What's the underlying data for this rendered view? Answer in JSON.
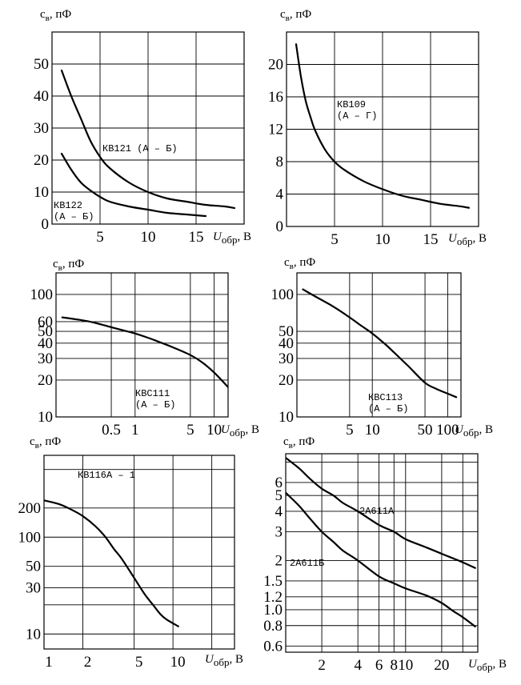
{
  "chart_data": [
    {
      "type": "line",
      "ylabel": "cв, пФ",
      "xlabel": "Uобр, В",
      "xlim": [
        0,
        20
      ],
      "ylim": [
        0,
        60
      ],
      "xticks": [
        5,
        10,
        15
      ],
      "xtick_labels": [
        "5",
        "10",
        "15"
      ],
      "yticks": [
        0,
        10,
        20,
        30,
        40,
        50
      ],
      "ytick_labels": [
        "0",
        "10",
        "20",
        "30",
        "40",
        "50"
      ],
      "grid": true,
      "series": [
        {
          "name": "КВ121 (А – Б)",
          "x": [
            1,
            2,
            3,
            4,
            5,
            6,
            8,
            10,
            12,
            14,
            16,
            18,
            19
          ],
          "y": [
            48,
            40,
            33,
            26,
            21,
            17.5,
            13,
            10,
            8,
            7,
            6,
            5.5,
            5
          ]
        },
        {
          "name": "КВ122 (А – Б)",
          "x": [
            1,
            2,
            3,
            4,
            5,
            6,
            8,
            10,
            12,
            14,
            16
          ],
          "y": [
            22,
            17,
            13,
            10.5,
            8.5,
            7,
            5.5,
            4.5,
            3.5,
            3,
            2.5
          ]
        }
      ],
      "label_lines": [
        [
          "КВ121 (А – Б)"
        ],
        [
          "КВ122",
          "(А – Б)"
        ]
      ]
    },
    {
      "type": "line",
      "ylabel": "cв, пФ",
      "xlabel": "Uобр, В",
      "xlim": [
        0,
        20
      ],
      "ylim": [
        0,
        24
      ],
      "xticks": [
        5,
        10,
        15
      ],
      "xtick_labels": [
        "5",
        "10",
        "15"
      ],
      "yticks": [
        0,
        4,
        8,
        12,
        16,
        20
      ],
      "ytick_labels": [
        "0",
        "4",
        "8",
        "12",
        "16",
        "20"
      ],
      "grid": true,
      "series": [
        {
          "name": "КВ109 (А – Г)",
          "x": [
            1,
            1.5,
            2,
            2.5,
            3,
            4,
            5,
            6,
            8,
            10,
            12,
            14,
            16,
            18,
            19
          ],
          "y": [
            22.5,
            18.5,
            15.5,
            13.5,
            11.8,
            9.5,
            8,
            7,
            5.6,
            4.6,
            3.8,
            3.3,
            2.8,
            2.5,
            2.3
          ]
        }
      ],
      "label_lines": [
        [
          "КВ109",
          "(А – Г)"
        ]
      ]
    },
    {
      "type": "line",
      "ylabel": "cв, пФ",
      "xlabel": "Uобр, В",
      "xscale": "log",
      "yscale": "log",
      "xlim": [
        0.1,
        15
      ],
      "ylim": [
        10,
        150
      ],
      "xticks": [
        0.5,
        1,
        5,
        10
      ],
      "xtick_labels": [
        "0.5",
        "1",
        "5",
        "10"
      ],
      "yticks": [
        10,
        20,
        30,
        40,
        50,
        60,
        100
      ],
      "ytick_labels": [
        "10",
        "20",
        "30",
        "40",
        "50",
        "60",
        "100"
      ],
      "grid": true,
      "series": [
        {
          "name": "КВС111 (А – Б)",
          "x": [
            0.12,
            0.2,
            0.3,
            0.5,
            0.7,
            1,
            1.5,
            2,
            3,
            5,
            7,
            10,
            15
          ],
          "y": [
            65,
            62,
            59,
            54,
            51,
            48,
            44,
            41,
            37,
            32,
            28,
            23,
            17.5
          ]
        }
      ],
      "label_lines": [
        [
          "КВС111",
          "(А – Б)"
        ]
      ]
    },
    {
      "type": "line",
      "ylabel": "cв, пФ",
      "xlabel": "Uобр, В",
      "xscale": "log",
      "yscale": "log",
      "xlim": [
        1,
        150
      ],
      "ylim": [
        10,
        150
      ],
      "xticks": [
        5,
        10,
        50,
        100
      ],
      "xtick_labels": [
        "5",
        "10",
        "50",
        "100"
      ],
      "yticks": [
        10,
        20,
        30,
        40,
        50,
        100
      ],
      "ytick_labels": [
        "10",
        "20",
        "30",
        "40",
        "50",
        "100"
      ],
      "grid": true,
      "series": [
        {
          "name": "КВС113 (А – Б)",
          "x": [
            1.2,
            2,
            3,
            5,
            7,
            10,
            15,
            20,
            30,
            50,
            70,
            100,
            130
          ],
          "y": [
            110,
            92,
            80,
            65,
            56,
            48,
            39,
            33,
            26,
            19,
            17,
            15.5,
            14.5
          ]
        }
      ],
      "label_lines": [
        [
          "КВС113",
          "(А – Б)"
        ]
      ]
    },
    {
      "type": "line",
      "ylabel": "cв, пФ",
      "xlabel": "Uобр, В",
      "xscale": "log",
      "yscale": "log",
      "xlim": [
        1,
        30
      ],
      "ylim": [
        7,
        700
      ],
      "xticks": [
        1,
        2,
        5,
        10
      ],
      "xtick_labels": [
        "1",
        "2",
        "5",
        "10"
      ],
      "yticks": [
        10,
        30,
        50,
        100,
        200
      ],
      "ytick_labels": [
        "10",
        "30",
        "50",
        "100",
        "200"
      ],
      "grid": true,
      "series": [
        {
          "name": "КВ116А – 1",
          "x": [
            1,
            1.3,
            1.6,
            2,
            2.5,
            3,
            3.5,
            4,
            5,
            6,
            7,
            8,
            9,
            11
          ],
          "y": [
            240,
            220,
            195,
            165,
            130,
            100,
            75,
            60,
            38,
            26,
            20,
            16,
            14,
            12
          ]
        }
      ],
      "label_lines": [
        [
          "КВ116А – 1"
        ]
      ]
    },
    {
      "type": "line",
      "ylabel": "cв, пФ",
      "xlabel": "Uобр, В",
      "xscale": "log",
      "yscale": "log",
      "xlim": [
        1,
        40
      ],
      "ylim": [
        0.55,
        9
      ],
      "xticks": [
        2,
        4,
        6,
        8,
        10,
        20
      ],
      "xtick_labels": [
        "2",
        "4",
        "6",
        "8",
        "10",
        "20"
      ],
      "yticks": [
        0.6,
        0.8,
        1.0,
        1.2,
        1.5,
        2,
        3,
        4,
        5,
        6
      ],
      "ytick_labels": [
        "0.6",
        "0.8",
        "1.0",
        "1.2",
        "1.5",
        "2",
        "3",
        "4",
        "5",
        "6"
      ],
      "grid": true,
      "series": [
        {
          "name": "2А611А",
          "x": [
            1,
            1.3,
            1.6,
            2,
            2.5,
            3,
            4,
            6,
            8,
            10,
            15,
            20,
            30,
            38
          ],
          "y": [
            8.5,
            7.3,
            6.3,
            5.5,
            5,
            4.5,
            4,
            3.3,
            3,
            2.7,
            2.4,
            2.2,
            1.95,
            1.8
          ]
        },
        {
          "name": "2А611Б",
          "x": [
            1,
            1.3,
            1.6,
            2,
            2.5,
            3,
            4,
            6,
            8,
            10,
            15,
            20,
            25,
            30,
            38
          ],
          "y": [
            5.2,
            4.3,
            3.6,
            3,
            2.6,
            2.3,
            2,
            1.6,
            1.45,
            1.35,
            1.22,
            1.1,
            0.98,
            0.9,
            0.79
          ]
        }
      ],
      "label_lines": [
        [
          "2А611А"
        ],
        [
          "2А611Б"
        ]
      ]
    }
  ]
}
